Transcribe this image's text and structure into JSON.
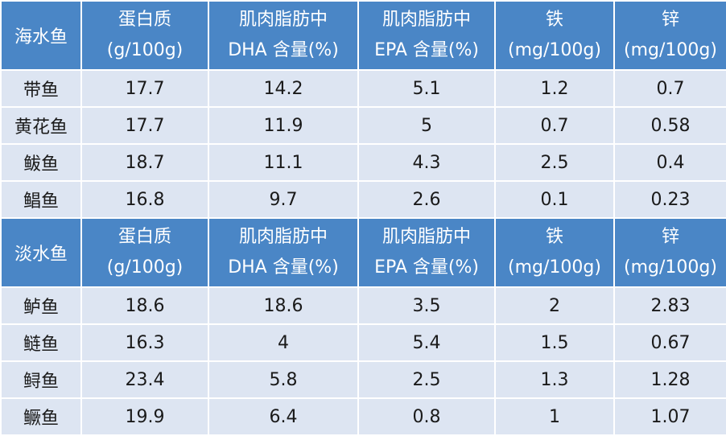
{
  "headers": {
    "protein": [
      "蛋白质",
      "(g/100g)"
    ],
    "dha": [
      "肌肉脂肪中",
      "DHA 含量(%)"
    ],
    "epa": [
      "肌肉脂肪中",
      "EPA 含量(%)"
    ],
    "iron": [
      "铁",
      "(mg/100g)"
    ],
    "zinc": [
      "锌",
      "(mg/100g)"
    ]
  },
  "sections": [
    {
      "group": "海水鱼",
      "rows": [
        {
          "name": "带鱼",
          "protein": "17.7",
          "dha": "14.2",
          "epa": "5.1",
          "iron": "1.2",
          "zinc": "0.7"
        },
        {
          "name": "黄花鱼",
          "protein": "17.7",
          "dha": "11.9",
          "epa": "5",
          "iron": "0.7",
          "zinc": "0.58"
        },
        {
          "name": "鲅鱼",
          "protein": "18.7",
          "dha": "11.1",
          "epa": "4.3",
          "iron": "2.5",
          "zinc": "0.4"
        },
        {
          "name": "鲳鱼",
          "protein": "16.8",
          "dha": "9.7",
          "epa": "2.6",
          "iron": "0.1",
          "zinc": "0.23"
        }
      ]
    },
    {
      "group": "淡水鱼",
      "rows": [
        {
          "name": "鲈鱼",
          "protein": "18.6",
          "dha": "18.6",
          "epa": "3.5",
          "iron": "2",
          "zinc": "2.83"
        },
        {
          "name": "鲢鱼",
          "protein": "16.3",
          "dha": "4",
          "epa": "5.4",
          "iron": "1.5",
          "zinc": "0.67"
        },
        {
          "name": "鲟鱼",
          "protein": "23.4",
          "dha": "5.8",
          "epa": "2.5",
          "iron": "1.3",
          "zinc": "1.28"
        },
        {
          "name": "鳜鱼",
          "protein": "19.9",
          "dha": "6.4",
          "epa": "0.8",
          "iron": "1",
          "zinc": "1.07"
        }
      ]
    }
  ]
}
